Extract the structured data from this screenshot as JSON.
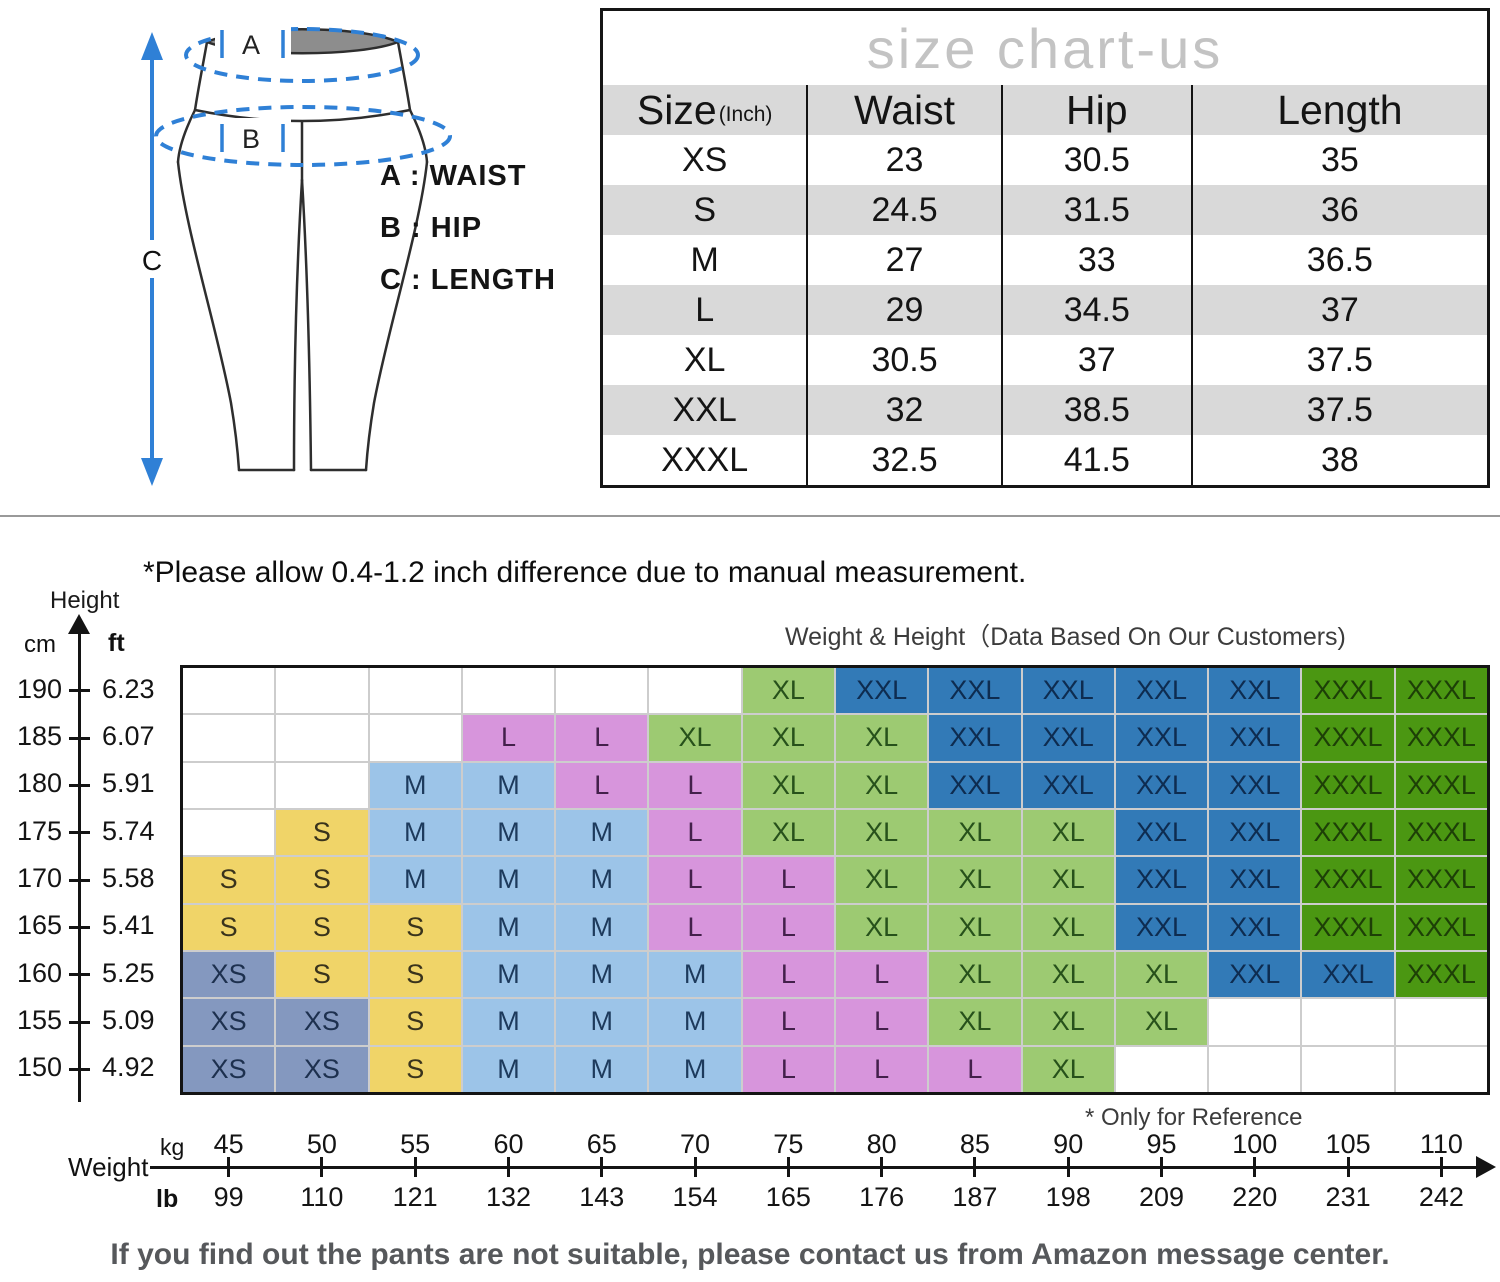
{
  "colors": {
    "accent_blue": "#2f80d6",
    "table_stripe": "#d9d9d9",
    "grid_line": "#cdcdcd",
    "contact_text": "#56585b",
    "title_gray": "#c3c3c3"
  },
  "diagram": {
    "marker_a": "A",
    "marker_b": "B",
    "marker_c": "C",
    "legend": [
      "A : WAIST",
      "B : HIP",
      "C : LENGTH"
    ]
  },
  "size_table": {
    "title": "size chart-us",
    "headers": {
      "size": "Size",
      "size_unit": "(Inch)",
      "waist": "Waist",
      "hip": "Hip",
      "length": "Length"
    },
    "rows": [
      {
        "size": "XS",
        "waist": "23",
        "hip": "30.5",
        "length": "35"
      },
      {
        "size": "S",
        "waist": "24.5",
        "hip": "31.5",
        "length": "36"
      },
      {
        "size": "M",
        "waist": "27",
        "hip": "33",
        "length": "36.5"
      },
      {
        "size": "L",
        "waist": "29",
        "hip": "34.5",
        "length": "37"
      },
      {
        "size": "XL",
        "waist": "30.5",
        "hip": "37",
        "length": "37.5"
      },
      {
        "size": "XXL",
        "waist": "32",
        "hip": "38.5",
        "length": "37.5"
      },
      {
        "size": "XXXL",
        "waist": "32.5",
        "hip": "41.5",
        "length": "38"
      }
    ]
  },
  "notes": {
    "measurement": "*Please allow 0.4-1.2 inch difference due to manual measurement.",
    "reference": "* Only for Reference",
    "contact": "If you find out the pants are not suitable, please contact us from Amazon message center."
  },
  "chart_data": {
    "type": "heatmap",
    "title": "Weight & Height（Data Based On Our Customers)",
    "legend_position": "none",
    "grid_lines": true,
    "y_axis": {
      "label": "Height",
      "unit_left": "cm",
      "unit_right": "ft",
      "cm": [
        190,
        185,
        180,
        175,
        170,
        165,
        160,
        155,
        150
      ],
      "ft": [
        6.23,
        6.07,
        5.91,
        5.74,
        5.58,
        5.41,
        5.25,
        5.09,
        4.92
      ]
    },
    "x_axis": {
      "label": "Weight",
      "unit_top": "kg",
      "unit_bottom": "lb",
      "kg": [
        45,
        50,
        55,
        60,
        65,
        70,
        75,
        80,
        85,
        90,
        95,
        100,
        105,
        110
      ],
      "lb": [
        99,
        110,
        121,
        132,
        143,
        154,
        165,
        176,
        187,
        198,
        209,
        220,
        231,
        242
      ]
    },
    "grid": [
      [
        "",
        "",
        "",
        "",
        "",
        "",
        "XL",
        "XXL",
        "XXL",
        "XXL",
        "XXL",
        "XXL",
        "XXXL",
        "XXXL"
      ],
      [
        "",
        "",
        "",
        "L",
        "L",
        "XL",
        "XL",
        "XL",
        "XXL",
        "XXL",
        "XXL",
        "XXL",
        "XXXL",
        "XXXL"
      ],
      [
        "",
        "",
        "M",
        "M",
        "L",
        "L",
        "XL",
        "XL",
        "XXL",
        "XXL",
        "XXL",
        "XXL",
        "XXXL",
        "XXXL"
      ],
      [
        "",
        "S",
        "M",
        "M",
        "M",
        "L",
        "XL",
        "XL",
        "XL",
        "XL",
        "XXL",
        "XXL",
        "XXXL",
        "XXXL"
      ],
      [
        "S",
        "S",
        "M",
        "M",
        "M",
        "L",
        "L",
        "XL",
        "XL",
        "XL",
        "XXL",
        "XXL",
        "XXXL",
        "XXXL"
      ],
      [
        "S",
        "S",
        "S",
        "M",
        "M",
        "L",
        "L",
        "XL",
        "XL",
        "XL",
        "XXL",
        "XXL",
        "XXXL",
        "XXXL"
      ],
      [
        "XS",
        "S",
        "S",
        "M",
        "M",
        "M",
        "L",
        "L",
        "XL",
        "XL",
        "XL",
        "XXL",
        "XXL",
        "XXXL"
      ],
      [
        "XS",
        "XS",
        "S",
        "M",
        "M",
        "M",
        "L",
        "L",
        "XL",
        "XL",
        "XL",
        "",
        "",
        ""
      ],
      [
        "XS",
        "XS",
        "S",
        "M",
        "M",
        "M",
        "L",
        "L",
        "L",
        "XL",
        "",
        "",
        "",
        ""
      ]
    ],
    "size_colors": {
      "XS": {
        "bg": "#8498bf",
        "text": "#1d304e"
      },
      "S": {
        "bg": "#f0d468",
        "text": "#39331c"
      },
      "M": {
        "bg": "#9cc4e8",
        "text": "#1d3a5c"
      },
      "L": {
        "bg": "#d795dc",
        "text": "#43204b"
      },
      "XL": {
        "bg": "#9dca72",
        "text": "#27511b"
      },
      "XXL": {
        "bg": "#327ab7",
        "text": "#0e2c50"
      },
      "XXXL": {
        "bg": "#4b9712",
        "text": "#1d3f07"
      }
    }
  }
}
